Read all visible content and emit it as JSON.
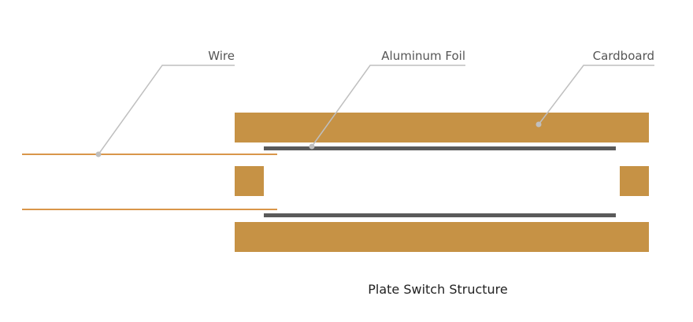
{
  "labels": {
    "wire": "Wire",
    "aluminum_foil": "Aluminum Foil",
    "cardboard": "Cardboard"
  },
  "caption": "Plate Switch Structure",
  "colors": {
    "cardboard": "#c69245",
    "wire": "#d9964a",
    "foil": "#5a5a5a",
    "leader": "#bfbfbf",
    "label_text": "#555555",
    "caption_text": "#222222"
  }
}
